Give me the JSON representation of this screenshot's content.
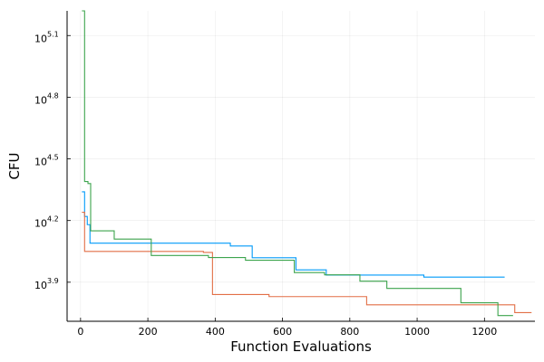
{
  "chart_data": {
    "type": "line",
    "style": "step",
    "xlabel": "Function Evaluations",
    "ylabel": "CFU",
    "y_scale": "log10",
    "xlim": [
      -40,
      1350
    ],
    "ylim_log10": [
      3.71,
      5.22
    ],
    "grid": true,
    "legend": "none",
    "x_ticks": [
      0,
      200,
      400,
      600,
      800,
      1000,
      1200
    ],
    "x_tick_labels": [
      "0",
      "200",
      "400",
      "600",
      "800",
      "1000",
      "1200"
    ],
    "y_ticks_log10": [
      3.9,
      4.2,
      4.5,
      4.8,
      5.1
    ],
    "y_tick_labels": [
      {
        "base": "10",
        "exp": "3.9"
      },
      {
        "base": "10",
        "exp": "4.2"
      },
      {
        "base": "10",
        "exp": "4.5"
      },
      {
        "base": "10",
        "exp": "4.8"
      },
      {
        "base": "10",
        "exp": "5.1"
      }
    ],
    "series": [
      {
        "color": "#009AF9",
        "x": [
          4,
          12,
          20,
          28,
          445,
          510,
          640,
          730,
          1020,
          1260
        ],
        "log10_y": [
          4.34,
          4.22,
          4.18,
          4.09,
          4.076,
          4.019,
          3.96,
          3.935,
          3.925,
          3.925
        ]
      },
      {
        "color": "#E26F46",
        "x": [
          4,
          12,
          365,
          392,
          560,
          850,
          1290,
          1340
        ],
        "log10_y": [
          4.24,
          4.05,
          4.045,
          3.84,
          3.83,
          3.79,
          3.752,
          3.752
        ]
      },
      {
        "color": "#3DA44D",
        "x": [
          4,
          12,
          22,
          30,
          100,
          210,
          380,
          490,
          635,
          725,
          830,
          910,
          1130,
          1240,
          1285
        ],
        "log10_y": [
          5.22,
          4.39,
          4.38,
          4.15,
          4.11,
          4.03,
          4.02,
          4.007,
          3.947,
          3.936,
          3.905,
          3.87,
          3.8,
          3.738,
          3.738
        ]
      }
    ]
  }
}
